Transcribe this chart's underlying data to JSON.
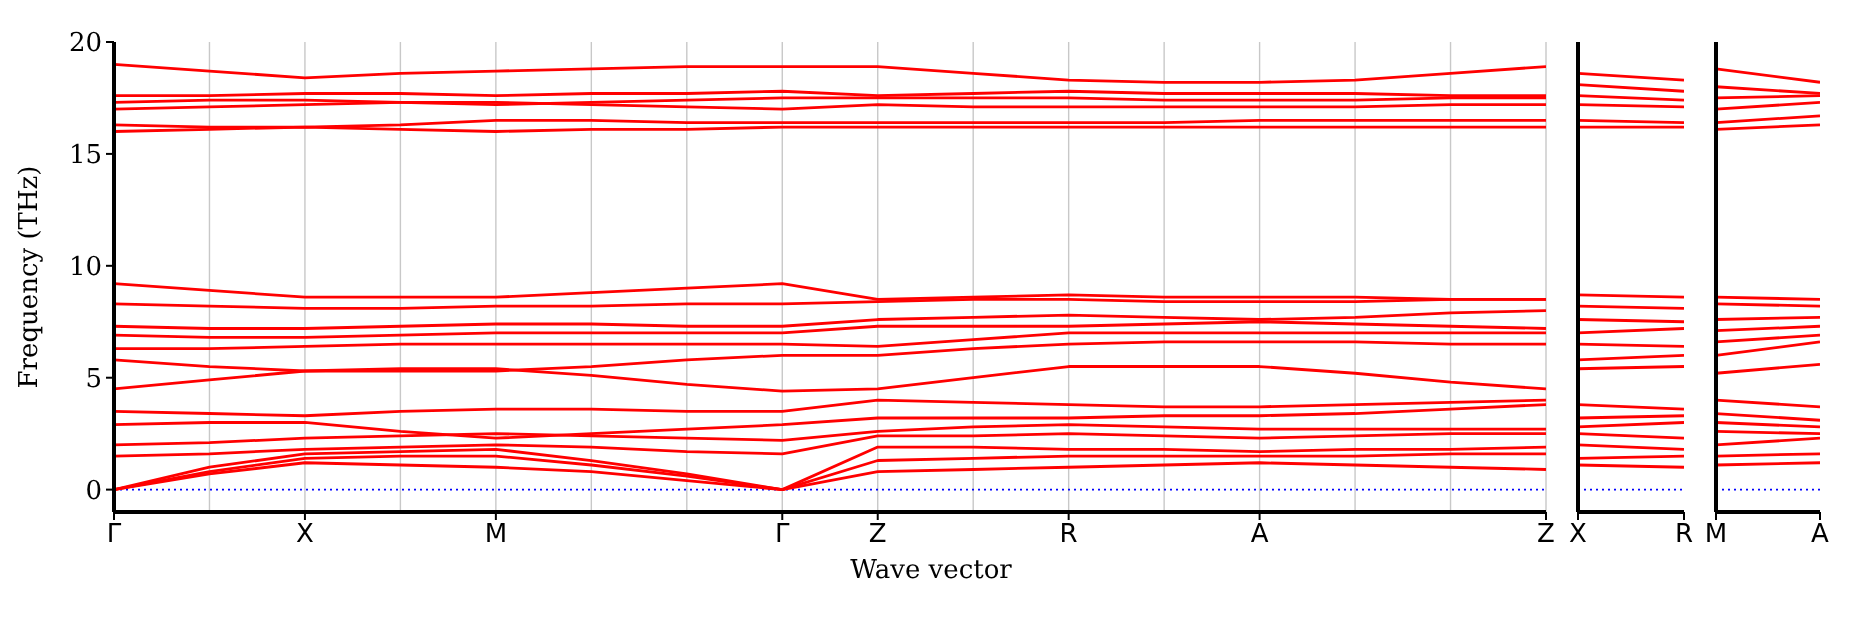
{
  "chart_data": [
    {
      "type": "line",
      "ylabel": "Frequency (THz)",
      "xlabel": "Wave vector",
      "categories": [
        "Γ",
        null,
        "X",
        null,
        "M",
        null,
        null,
        "Γ",
        "Z",
        null,
        "R",
        null,
        "A",
        null,
        null,
        "Z"
      ],
      "ylim": [
        -1,
        20
      ],
      "yticks": [
        0,
        5,
        10,
        15,
        20
      ],
      "grid": "x",
      "marker": "none",
      "line_style": "solid",
      "ref_lines": [
        {
          "axis": "y",
          "value": 0,
          "color": "#0000ff",
          "line_style": "dotted"
        }
      ],
      "series": [
        {
          "color": "#ff0000",
          "values": [
            0,
            0.7,
            1.2,
            1.1,
            1.0,
            0.8,
            0.4,
            0,
            0.8,
            0.9,
            1.0,
            1.1,
            1.2,
            1.1,
            1.0,
            0.9
          ]
        },
        {
          "color": "#ff0000",
          "values": [
            0,
            0.8,
            1.4,
            1.5,
            1.5,
            1.1,
            0.6,
            0,
            1.3,
            1.4,
            1.5,
            1.5,
            1.5,
            1.5,
            1.6,
            1.6
          ]
        },
        {
          "color": "#ff0000",
          "values": [
            0,
            1.0,
            1.6,
            1.7,
            1.8,
            1.3,
            0.7,
            0,
            1.9,
            1.9,
            1.8,
            1.8,
            1.7,
            1.8,
            1.8,
            1.9
          ]
        },
        {
          "color": "#ff0000",
          "values": [
            1.5,
            1.6,
            1.8,
            1.9,
            2.0,
            1.9,
            1.7,
            1.6,
            2.4,
            2.4,
            2.5,
            2.4,
            2.3,
            2.4,
            2.5,
            2.5
          ]
        },
        {
          "color": "#ff0000",
          "values": [
            2.0,
            2.1,
            2.3,
            2.4,
            2.5,
            2.4,
            2.3,
            2.2,
            2.6,
            2.8,
            2.9,
            2.8,
            2.7,
            2.7,
            2.7,
            2.7
          ]
        },
        {
          "color": "#ff0000",
          "values": [
            2.9,
            3.0,
            3.0,
            2.6,
            2.3,
            2.5,
            2.7,
            2.9,
            3.2,
            3.2,
            3.2,
            3.3,
            3.3,
            3.4,
            3.6,
            3.8
          ]
        },
        {
          "color": "#ff0000",
          "values": [
            3.5,
            3.4,
            3.3,
            3.5,
            3.6,
            3.6,
            3.5,
            3.5,
            4.0,
            3.9,
            3.8,
            3.7,
            3.7,
            3.8,
            3.9,
            4.0
          ]
        },
        {
          "color": "#ff0000",
          "values": [
            4.5,
            4.9,
            5.3,
            5.4,
            5.4,
            5.1,
            4.7,
            4.4,
            4.5,
            5.0,
            5.5,
            5.5,
            5.5,
            5.2,
            4.8,
            4.5
          ]
        },
        {
          "color": "#ff0000",
          "values": [
            5.8,
            5.5,
            5.3,
            5.3,
            5.3,
            5.5,
            5.8,
            6.0,
            6.0,
            6.3,
            6.5,
            6.6,
            6.6,
            6.6,
            6.5,
            6.5
          ]
        },
        {
          "color": "#ff0000",
          "values": [
            6.3,
            6.3,
            6.4,
            6.5,
            6.5,
            6.5,
            6.5,
            6.5,
            6.4,
            6.7,
            7.0,
            7.0,
            7.0,
            7.0,
            7.0,
            7.0
          ]
        },
        {
          "color": "#ff0000",
          "values": [
            6.9,
            6.8,
            6.8,
            6.9,
            7.0,
            7.0,
            7.0,
            7.0,
            7.3,
            7.3,
            7.3,
            7.4,
            7.5,
            7.4,
            7.3,
            7.2
          ]
        },
        {
          "color": "#ff0000",
          "values": [
            7.3,
            7.2,
            7.2,
            7.3,
            7.4,
            7.4,
            7.3,
            7.3,
            7.6,
            7.7,
            7.8,
            7.7,
            7.6,
            7.7,
            7.9,
            8.0
          ]
        },
        {
          "color": "#ff0000",
          "values": [
            8.3,
            8.2,
            8.1,
            8.1,
            8.2,
            8.2,
            8.3,
            8.3,
            8.4,
            8.5,
            8.5,
            8.4,
            8.4,
            8.4,
            8.5,
            8.5
          ]
        },
        {
          "color": "#ff0000",
          "values": [
            9.2,
            8.9,
            8.6,
            8.6,
            8.6,
            8.8,
            9.0,
            9.2,
            8.5,
            8.6,
            8.7,
            8.6,
            8.6,
            8.6,
            8.5,
            8.5
          ]
        },
        {
          "color": "#ff0000",
          "values": [
            16.0,
            16.1,
            16.2,
            16.1,
            16.0,
            16.1,
            16.1,
            16.2,
            16.2,
            16.2,
            16.2,
            16.2,
            16.2,
            16.2,
            16.2,
            16.2
          ]
        },
        {
          "color": "#ff0000",
          "values": [
            16.3,
            16.2,
            16.2,
            16.3,
            16.5,
            16.5,
            16.4,
            16.4,
            16.4,
            16.4,
            16.4,
            16.4,
            16.5,
            16.5,
            16.5,
            16.5
          ]
        },
        {
          "color": "#ff0000",
          "values": [
            17.0,
            17.1,
            17.2,
            17.3,
            17.3,
            17.2,
            17.1,
            17.0,
            17.2,
            17.1,
            17.1,
            17.1,
            17.1,
            17.1,
            17.2,
            17.2
          ]
        },
        {
          "color": "#ff0000",
          "values": [
            17.3,
            17.4,
            17.4,
            17.3,
            17.2,
            17.3,
            17.4,
            17.5,
            17.5,
            17.5,
            17.5,
            17.4,
            17.4,
            17.4,
            17.5,
            17.5
          ]
        },
        {
          "color": "#ff0000",
          "values": [
            17.6,
            17.6,
            17.7,
            17.7,
            17.6,
            17.7,
            17.7,
            17.8,
            17.6,
            17.7,
            17.8,
            17.7,
            17.7,
            17.7,
            17.6,
            17.6
          ]
        },
        {
          "color": "#ff0000",
          "values": [
            19.0,
            18.7,
            18.4,
            18.6,
            18.7,
            18.8,
            18.9,
            18.9,
            18.9,
            18.6,
            18.3,
            18.2,
            18.2,
            18.3,
            18.6,
            18.9
          ]
        }
      ]
    },
    {
      "type": "line",
      "categories": [
        "X",
        "R"
      ],
      "ylim": [
        -1,
        20
      ],
      "yticks": [
        0,
        5,
        10,
        15,
        20
      ],
      "tick_labels": "x",
      "marker": "none",
      "line_style": "solid",
      "ref_lines": [
        {
          "axis": "y",
          "value": 0,
          "color": "#0000ff",
          "line_style": "dotted"
        }
      ],
      "series": [
        {
          "color": "#ff0000",
          "values": [
            1.1,
            1.0
          ]
        },
        {
          "color": "#ff0000",
          "values": [
            1.4,
            1.5
          ]
        },
        {
          "color": "#ff0000",
          "values": [
            2.0,
            1.8
          ]
        },
        {
          "color": "#ff0000",
          "values": [
            2.5,
            2.3
          ]
        },
        {
          "color": "#ff0000",
          "values": [
            2.8,
            3.0
          ]
        },
        {
          "color": "#ff0000",
          "values": [
            3.2,
            3.3
          ]
        },
        {
          "color": "#ff0000",
          "values": [
            3.8,
            3.6
          ]
        },
        {
          "color": "#ff0000",
          "values": [
            5.4,
            5.5
          ]
        },
        {
          "color": "#ff0000",
          "values": [
            5.8,
            6.0
          ]
        },
        {
          "color": "#ff0000",
          "values": [
            6.5,
            6.4
          ]
        },
        {
          "color": "#ff0000",
          "values": [
            7.0,
            7.2
          ]
        },
        {
          "color": "#ff0000",
          "values": [
            7.6,
            7.5
          ]
        },
        {
          "color": "#ff0000",
          "values": [
            8.2,
            8.1
          ]
        },
        {
          "color": "#ff0000",
          "values": [
            8.7,
            8.6
          ]
        },
        {
          "color": "#ff0000",
          "values": [
            16.2,
            16.2
          ]
        },
        {
          "color": "#ff0000",
          "values": [
            16.5,
            16.4
          ]
        },
        {
          "color": "#ff0000",
          "values": [
            17.2,
            17.1
          ]
        },
        {
          "color": "#ff0000",
          "values": [
            17.6,
            17.4
          ]
        },
        {
          "color": "#ff0000",
          "values": [
            18.1,
            17.8
          ]
        },
        {
          "color": "#ff0000",
          "values": [
            18.6,
            18.3
          ]
        }
      ]
    },
    {
      "type": "line",
      "categories": [
        "M",
        "A"
      ],
      "ylim": [
        -1,
        20
      ],
      "yticks": [
        0,
        5,
        10,
        15,
        20
      ],
      "tick_labels": "x",
      "marker": "none",
      "line_style": "solid",
      "ref_lines": [
        {
          "axis": "y",
          "value": 0,
          "color": "#0000ff",
          "line_style": "dotted"
        }
      ],
      "series": [
        {
          "color": "#ff0000",
          "values": [
            1.1,
            1.2
          ]
        },
        {
          "color": "#ff0000",
          "values": [
            1.5,
            1.6
          ]
        },
        {
          "color": "#ff0000",
          "values": [
            2.0,
            2.3
          ]
        },
        {
          "color": "#ff0000",
          "values": [
            2.6,
            2.5
          ]
        },
        {
          "color": "#ff0000",
          "values": [
            3.0,
            2.8
          ]
        },
        {
          "color": "#ff0000",
          "values": [
            3.4,
            3.1
          ]
        },
        {
          "color": "#ff0000",
          "values": [
            4.0,
            3.7
          ]
        },
        {
          "color": "#ff0000",
          "values": [
            5.2,
            5.6
          ]
        },
        {
          "color": "#ff0000",
          "values": [
            6.0,
            6.6
          ]
        },
        {
          "color": "#ff0000",
          "values": [
            6.6,
            6.9
          ]
        },
        {
          "color": "#ff0000",
          "values": [
            7.1,
            7.3
          ]
        },
        {
          "color": "#ff0000",
          "values": [
            7.6,
            7.7
          ]
        },
        {
          "color": "#ff0000",
          "values": [
            8.3,
            8.2
          ]
        },
        {
          "color": "#ff0000",
          "values": [
            8.6,
            8.5
          ]
        },
        {
          "color": "#ff0000",
          "values": [
            16.1,
            16.3
          ]
        },
        {
          "color": "#ff0000",
          "values": [
            16.4,
            16.7
          ]
        },
        {
          "color": "#ff0000",
          "values": [
            17.0,
            17.3
          ]
        },
        {
          "color": "#ff0000",
          "values": [
            17.5,
            17.6
          ]
        },
        {
          "color": "#ff0000",
          "values": [
            18.0,
            17.7
          ]
        },
        {
          "color": "#ff0000",
          "values": [
            18.8,
            18.2
          ]
        }
      ]
    }
  ]
}
